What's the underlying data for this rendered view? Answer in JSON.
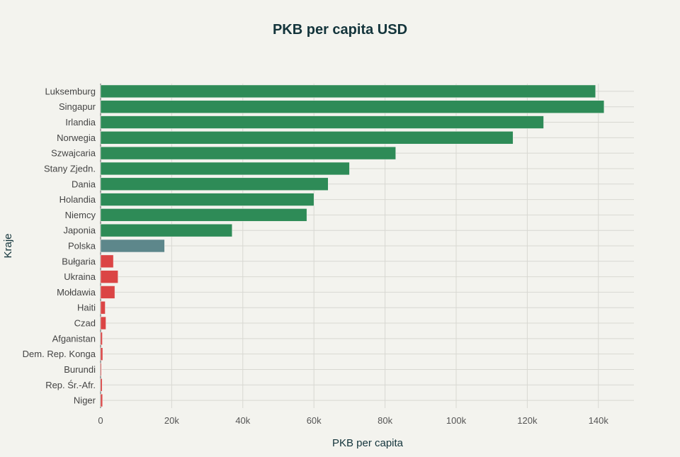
{
  "chart_data": {
    "type": "bar",
    "orientation": "horizontal",
    "title": "PKB per capita USD",
    "xlabel": "PKB per capita",
    "ylabel": "Kraje",
    "xlim": [
      0,
      150000
    ],
    "xticks": [
      0,
      20000,
      40000,
      60000,
      80000,
      100000,
      120000,
      140000
    ],
    "xtick_labels": [
      "0",
      "20k",
      "40k",
      "60k",
      "80k",
      "100k",
      "120k",
      "140k"
    ],
    "grid": true,
    "categories": [
      "Luksemburg",
      "Singapur",
      "Irlandia",
      "Norwegia",
      "Szwajcaria",
      "Stany Zjedn.",
      "Dania",
      "Holandia",
      "Niemcy",
      "Japonia",
      "Polska",
      "Bułgaria",
      "Ukraina",
      "Mołdawia",
      "Haiti",
      "Czad",
      "Afganistan",
      "Dem. Rep. Konga",
      "Burundi",
      "Rep. Śr.-Afr.",
      "Niger"
    ],
    "values": [
      139200,
      141600,
      124600,
      116000,
      83000,
      70000,
      64000,
      60000,
      58000,
      37000,
      18000,
      3600,
      4900,
      4000,
      1300,
      1500,
      500,
      600,
      250,
      450,
      550
    ],
    "colors": [
      "#2e8b57",
      "#2e8b57",
      "#2e8b57",
      "#2e8b57",
      "#2e8b57",
      "#2e8b57",
      "#2e8b57",
      "#2e8b57",
      "#2e8b57",
      "#2e8b57",
      "#5d878b",
      "#db4545",
      "#db4545",
      "#db4545",
      "#db4545",
      "#db4545",
      "#db4545",
      "#db4545",
      "#db4545",
      "#db4545",
      "#db4545"
    ]
  }
}
